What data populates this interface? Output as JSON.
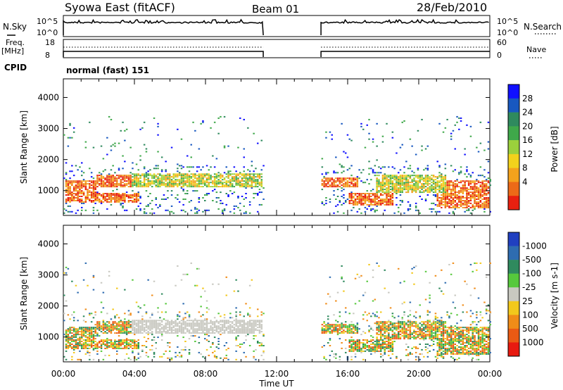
{
  "header": {
    "station": "Syowa East (fitACF)",
    "beam": "Beam 01",
    "date": "28/Feb/2010"
  },
  "chart_data": [
    {
      "type": "line",
      "name": "noise-panel",
      "left_label": "N.Sky",
      "right_label": "N.Search",
      "left_ticks": [
        "10^5",
        "10^0"
      ],
      "right_ticks": [
        "10^5",
        "10^0"
      ],
      "right_legend_style": "dotted",
      "data_gap_ut": [
        "11:15",
        "14:30"
      ]
    },
    {
      "type": "line",
      "name": "frequency-panel",
      "left_label": "Freq.",
      "left_units": "[MHz]",
      "right_label": "Nave",
      "left_ticks": [
        18,
        8
      ],
      "right_ticks": [
        60,
        0
      ],
      "right_legend_style": "dotted",
      "data_gap_ut": [
        "11:15",
        "14:30"
      ]
    },
    {
      "type": "table",
      "name": "cpid-panel",
      "label": "CPID",
      "value": "normal (fast) 151"
    },
    {
      "type": "heatmap",
      "name": "power-panel",
      "ylabel": "Slant Range [km]",
      "yticks": [
        1000,
        2000,
        3000,
        4000
      ],
      "ylim": [
        200,
        4600
      ],
      "xlim_hours": [
        0,
        24
      ],
      "data_gap_ut": [
        "11:15",
        "14:30"
      ],
      "colorbar_label": "Power [dB]",
      "colorbar_ticks": [
        4,
        8,
        12,
        16,
        20,
        24,
        28
      ],
      "colorbar_colors": [
        "#1010ff",
        "#1858c0",
        "#2f8a5e",
        "#3fa84a",
        "#9bd03c",
        "#f2d21c",
        "#f4a21c",
        "#ec6a18",
        "#e82010"
      ]
    },
    {
      "type": "heatmap",
      "name": "velocity-panel",
      "ylabel": "Slant Range [km]",
      "yticks": [
        1000,
        2000,
        3000,
        4000
      ],
      "ylim": [
        200,
        4600
      ],
      "xlim_hours": [
        0,
        24
      ],
      "data_gap_ut": [
        "11:15",
        "14:30"
      ],
      "xlabel": "Time UT",
      "xticks": [
        "00:00",
        "04:00",
        "08:00",
        "12:00",
        "16:00",
        "20:00",
        "00:00"
      ],
      "colorbar_label": "Velocity [m s-1]",
      "colorbar_ticks": [
        "1000",
        "500",
        "100",
        "25",
        "-25",
        "-100",
        "-500",
        "-1000"
      ],
      "colorbar_colors": [
        "#2040c0",
        "#2e6cb0",
        "#2f8a5e",
        "#56c83c",
        "#c8c8c0",
        "#f2c81c",
        "#f08c18",
        "#ea5a14",
        "#e81a10"
      ]
    }
  ]
}
